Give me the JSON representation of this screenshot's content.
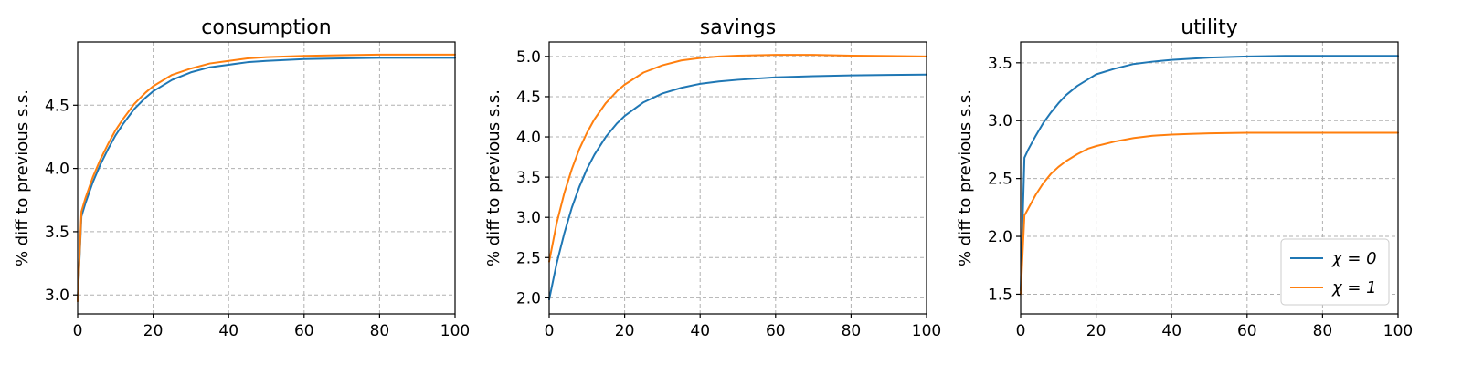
{
  "chart_data": [
    {
      "type": "line",
      "title": "consumption",
      "xlabel": "",
      "ylabel": "% diff to previous s.s.",
      "xlim": [
        0,
        100
      ],
      "ylim": [
        2.85,
        5.0
      ],
      "xticks": [
        0,
        20,
        40,
        60,
        80,
        100
      ],
      "yticks": [
        3.0,
        3.5,
        4.0,
        4.5
      ],
      "yticklabels": [
        "3.0",
        "3.5",
        "4.0",
        "4.5"
      ],
      "grid": true,
      "x": [
        0,
        1,
        2,
        4,
        6,
        8,
        10,
        12,
        15,
        18,
        20,
        25,
        30,
        35,
        40,
        45,
        50,
        60,
        70,
        80,
        90,
        100
      ],
      "series": [
        {
          "name": "",
          "color": "#1f77b4",
          "values": [
            2.95,
            3.62,
            3.72,
            3.89,
            4.03,
            4.15,
            4.26,
            4.35,
            4.47,
            4.56,
            4.61,
            4.7,
            4.76,
            4.8,
            4.82,
            4.84,
            4.85,
            4.865,
            4.87,
            4.875,
            4.875,
            4.875
          ]
        },
        {
          "name": "",
          "color": "#ff7f0e",
          "values": [
            2.95,
            3.66,
            3.76,
            3.93,
            4.07,
            4.19,
            4.3,
            4.39,
            4.51,
            4.6,
            4.65,
            4.74,
            4.79,
            4.83,
            4.85,
            4.87,
            4.88,
            4.89,
            4.895,
            4.9,
            4.9,
            4.9
          ]
        }
      ]
    },
    {
      "type": "line",
      "title": "savings",
      "xlabel": "",
      "ylabel": "% diff to previous s.s.",
      "xlim": [
        0,
        100
      ],
      "ylim": [
        1.8,
        5.18
      ],
      "xticks": [
        0,
        20,
        40,
        60,
        80,
        100
      ],
      "yticks": [
        2.0,
        2.5,
        3.0,
        3.5,
        4.0,
        4.5,
        5.0
      ],
      "yticklabels": [
        "2.0",
        "2.5",
        "3.0",
        "3.5",
        "4.0",
        "4.5",
        "5.0"
      ],
      "grid": true,
      "x": [
        0,
        2,
        4,
        6,
        8,
        10,
        12,
        15,
        18,
        20,
        25,
        30,
        35,
        40,
        45,
        50,
        60,
        70,
        80,
        90,
        100
      ],
      "series": [
        {
          "name": "",
          "color": "#1f77b4",
          "values": [
            1.98,
            2.43,
            2.8,
            3.12,
            3.38,
            3.6,
            3.78,
            4.0,
            4.17,
            4.26,
            4.43,
            4.54,
            4.61,
            4.66,
            4.69,
            4.71,
            4.74,
            4.755,
            4.765,
            4.77,
            4.775
          ]
        },
        {
          "name": "",
          "color": "#ff7f0e",
          "values": [
            2.45,
            2.93,
            3.3,
            3.6,
            3.85,
            4.05,
            4.22,
            4.42,
            4.57,
            4.65,
            4.8,
            4.89,
            4.95,
            4.98,
            5.0,
            5.01,
            5.02,
            5.02,
            5.01,
            5.005,
            5.0
          ]
        }
      ]
    },
    {
      "type": "line",
      "title": "utility",
      "xlabel": "",
      "ylabel": "% diff to previous s.s.",
      "xlim": [
        0,
        100
      ],
      "ylim": [
        1.33,
        3.68
      ],
      "xticks": [
        0,
        20,
        40,
        60,
        80,
        100
      ],
      "yticks": [
        1.5,
        2.0,
        2.5,
        3.0,
        3.5
      ],
      "yticklabels": [
        "1.5",
        "2.0",
        "2.5",
        "3.0",
        "3.5"
      ],
      "grid": true,
      "legend": {
        "placement": "lower-right",
        "entries": [
          "χ = 0",
          "χ = 1"
        ]
      },
      "x": [
        0,
        1,
        2,
        4,
        6,
        8,
        10,
        12,
        15,
        18,
        20,
        25,
        30,
        35,
        40,
        45,
        50,
        60,
        70,
        80,
        90,
        100
      ],
      "series": [
        {
          "name": "χ = 0",
          "color": "#1f77b4",
          "values": [
            1.53,
            2.68,
            2.75,
            2.87,
            2.98,
            3.07,
            3.15,
            3.22,
            3.3,
            3.36,
            3.4,
            3.45,
            3.49,
            3.51,
            3.525,
            3.535,
            3.545,
            3.555,
            3.56,
            3.56,
            3.56,
            3.56
          ]
        },
        {
          "name": "χ = 1",
          "color": "#ff7f0e",
          "values": [
            1.5,
            2.18,
            2.24,
            2.36,
            2.46,
            2.54,
            2.6,
            2.65,
            2.71,
            2.76,
            2.78,
            2.82,
            2.85,
            2.87,
            2.88,
            2.885,
            2.89,
            2.895,
            2.895,
            2.895,
            2.895,
            2.895
          ]
        }
      ]
    }
  ]
}
